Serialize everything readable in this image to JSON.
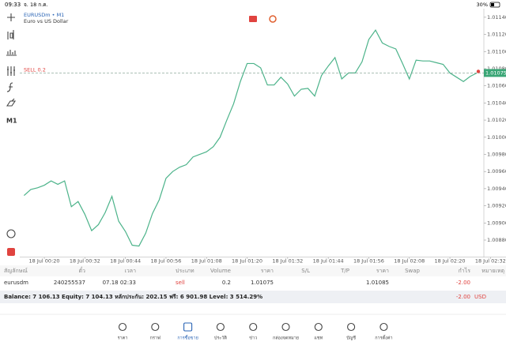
{
  "status_bar": {
    "time": "09:33",
    "date": "จ. 18 ก.ค.",
    "battery": "30%"
  },
  "header": {
    "symbol": "EURUSDm • M1",
    "description": "Euro vs US Dollar"
  },
  "toolbar": {
    "timeframe": "M1"
  },
  "chart_data": {
    "type": "line",
    "color": "#4cb38a",
    "categories": [
      null,
      null,
      null,
      "18 Jul 00:20",
      null,
      null,
      null,
      null,
      null,
      "18 Jul 00:32",
      null,
      null,
      null,
      null,
      null,
      "18 Jul 00:44",
      null,
      null,
      null,
      null,
      null,
      "18 Jul 00:56",
      null,
      null,
      null,
      null,
      null,
      "18 Jul 01:08",
      null,
      null,
      null,
      null,
      null,
      "18 Jul 01:20",
      null,
      null,
      null,
      null,
      null,
      "18 Jul 01:32",
      null,
      null,
      null,
      null,
      null,
      "18 Jul 01:44",
      null,
      null,
      null,
      null,
      null,
      "18 Jul 01:56",
      null,
      null,
      null,
      null,
      null,
      "18 Jul 02:08",
      null,
      null,
      null,
      null,
      null,
      "18 Jul 02:20",
      null,
      null,
      null,
      null,
      null,
      "18 Jul 02:32"
    ],
    "values": [
      1.00932,
      1.00939,
      1.00941,
      1.00944,
      1.00949,
      1.00945,
      1.00949,
      1.00919,
      1.00925,
      1.0091,
      1.00891,
      1.00898,
      1.00912,
      1.00931,
      1.00902,
      1.0089,
      1.00874,
      1.00873,
      1.00888,
      1.00911,
      1.00927,
      1.00952,
      1.0096,
      1.00965,
      1.00968,
      1.00977,
      1.0098,
      1.00983,
      1.00989,
      1.01,
      1.0102,
      1.01039,
      1.01065,
      1.01086,
      1.01086,
      1.01081,
      1.01061,
      1.01061,
      1.0107,
      1.01062,
      1.01048,
      1.01056,
      1.01057,
      1.01048,
      1.01072,
      1.01083,
      1.01093,
      1.01068,
      1.01075,
      1.01075,
      1.01088,
      1.01114,
      1.01125,
      1.0111,
      1.01106,
      1.01103,
      1.01086,
      1.01068,
      1.0109,
      1.01089,
      1.01089,
      1.01087,
      1.01085,
      1.01075,
      1.0107,
      1.01065,
      1.01071,
      1.01075,
      null,
      null
    ],
    "ylim": [
      1.0086,
      1.0115
    ],
    "yticks": [
      {
        "value": 1.0088,
        "label": "1.00880"
      },
      {
        "value": 1.009,
        "label": "1.00900"
      },
      {
        "value": 1.0092,
        "label": "1.00920"
      },
      {
        "value": 1.0094,
        "label": "1.00940"
      },
      {
        "value": 1.0096,
        "label": "1.00960"
      },
      {
        "value": 1.0098,
        "label": "1.00980"
      },
      {
        "value": 1.01,
        "label": "1.01000"
      },
      {
        "value": 1.0102,
        "label": "1.01020"
      },
      {
        "value": 1.0104,
        "label": "1.01040"
      },
      {
        "value": 1.0106,
        "label": "1.01060"
      },
      {
        "value": 1.0108,
        "label": "1.01080"
      },
      {
        "value": 1.011,
        "label": "1.01100"
      },
      {
        "value": 1.0112,
        "label": "1.01120"
      },
      {
        "value": 1.0114,
        "label": "1.01140"
      }
    ],
    "grid": false,
    "position_line": {
      "label": "SELL 0.2",
      "value": 1.01075
    }
  },
  "table": {
    "columns": [
      "สัญลักษณ์",
      "ตั๋ว",
      "เวลา",
      "ประเภท",
      "Volume",
      "ราคา",
      "S/L",
      "T/P",
      "ราคา",
      "Swap",
      "กำไร",
      "หมายเหตุ"
    ],
    "row": {
      "symbol": "eurusdm",
      "ticket": "240255537",
      "time": "07.18 02:33",
      "type": "sell",
      "volume": "0.2",
      "open_price": "1.01075",
      "price": "1.01085",
      "profit": "-2.00"
    }
  },
  "summary": {
    "text": "Balance: 7 106.13 Equity: 7 104.13 หลักประกัน: 202.15 ฟรี: 6 901.98 Level: 3 514.29%",
    "profit": "-2.00",
    "currency": "USD"
  },
  "nav": [
    "ราคา",
    "กราฟ",
    "การซื้อขาย",
    "ประวัติ",
    "ข่าว",
    "กล่องจดหมาย",
    "แชท",
    "บัญชี",
    "การตั้งค่า"
  ]
}
